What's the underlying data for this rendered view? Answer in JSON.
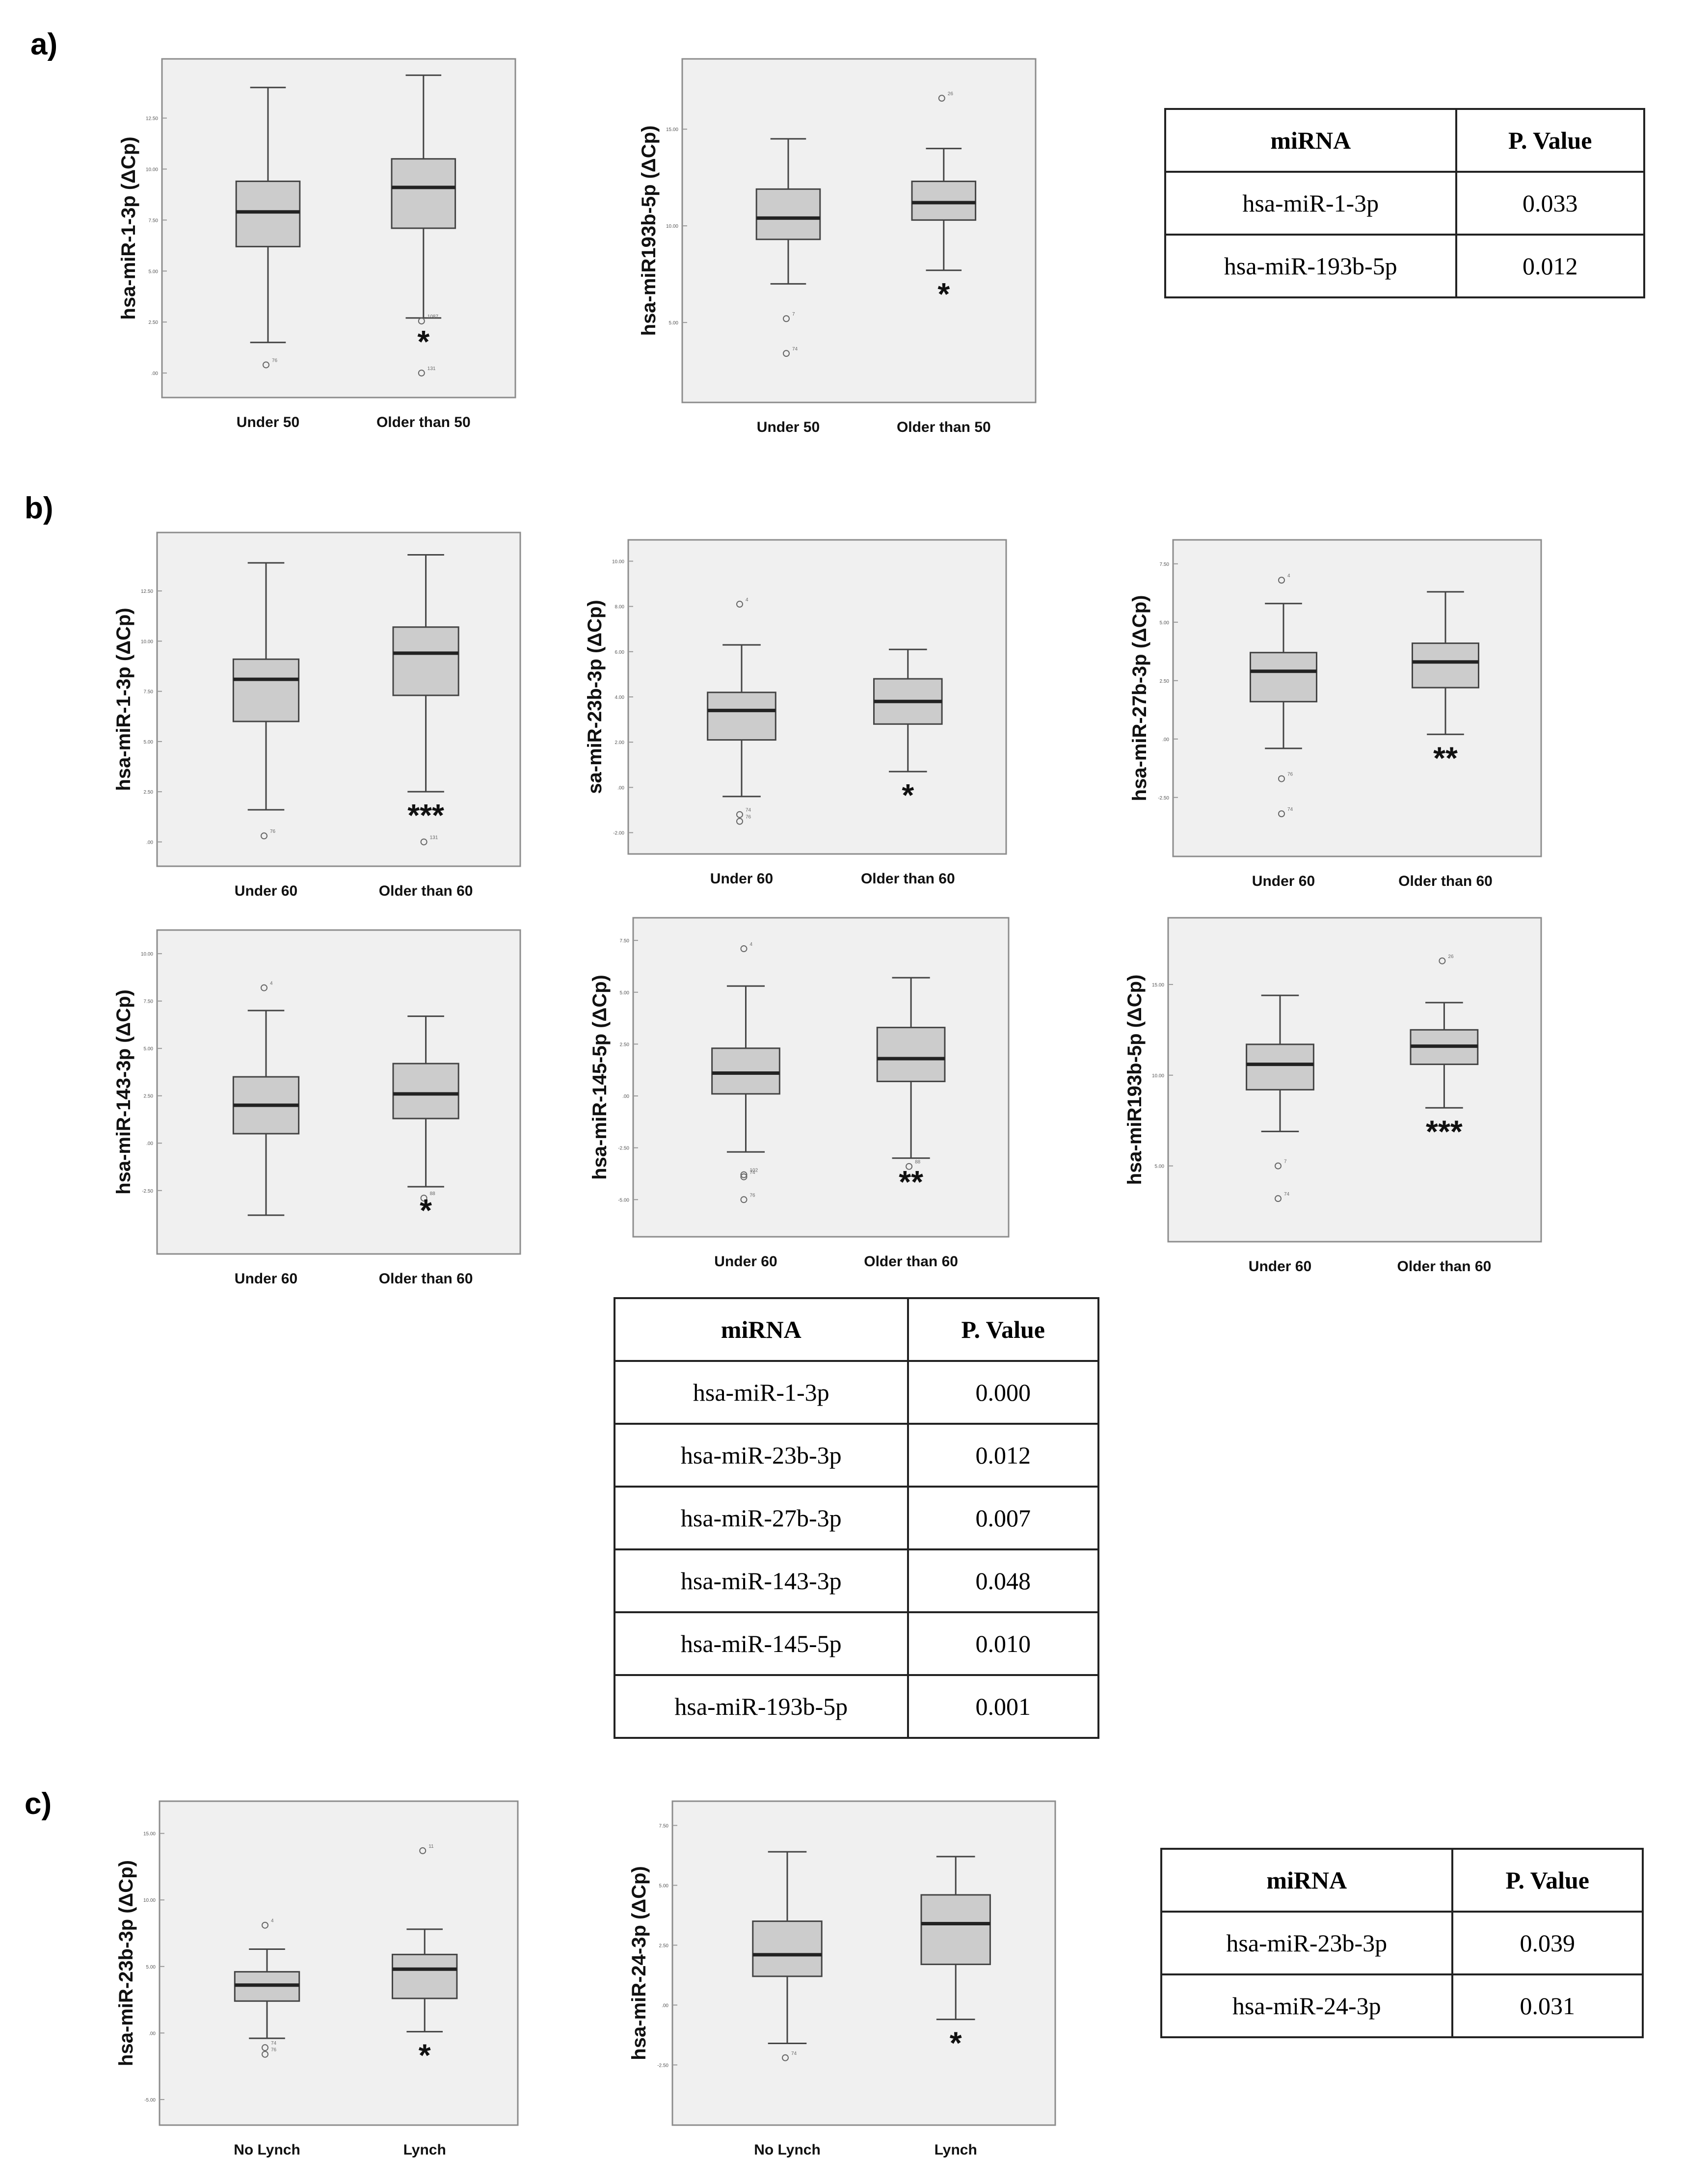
{
  "panels": {
    "a": "a)",
    "b": "b)",
    "c": "c)"
  },
  "chart_data": [
    {
      "id": "a1",
      "type": "boxplot",
      "ylabel": "hsa-miR-1-3p (ΔCp)",
      "categories": [
        "Under 50",
        "Older than 50"
      ],
      "yticks": [
        ".00",
        "2.50",
        "5.00",
        "7.50",
        "10.00",
        "12.50"
      ],
      "ylim": [
        -0.6,
        14.8
      ],
      "boxes": [
        {
          "low": 1.5,
          "q1": 6.2,
          "median": 7.9,
          "q3": 9.4,
          "high": 14.0,
          "outliers": [
            {
              "v": 0.4,
              "label": "76"
            }
          ]
        },
        {
          "low": 2.7,
          "q1": 7.1,
          "median": 9.1,
          "q3": 10.5,
          "high": 14.6,
          "outliers": [
            {
              "v": 2.55,
              "label": "1087"
            },
            {
              "v": 0.0,
              "label": "131"
            }
          ]
        }
      ],
      "significance": [
        "",
        "*"
      ]
    },
    {
      "id": "a2",
      "type": "boxplot",
      "ylabel": "hsa-miR193b-5p (ΔCp)",
      "categories": [
        "Under 50",
        "Older than 50"
      ],
      "yticks": [
        "5.00",
        "10.00",
        "15.00"
      ],
      "ylim": [
        1.5,
        18.0
      ],
      "boxes": [
        {
          "low": 7.0,
          "q1": 9.3,
          "median": 10.4,
          "q3": 11.9,
          "high": 14.5,
          "outliers": [
            {
              "v": 5.2,
              "label": "7"
            },
            {
              "v": 3.4,
              "label": "74"
            }
          ]
        },
        {
          "low": 7.7,
          "q1": 10.3,
          "median": 11.2,
          "q3": 12.3,
          "high": 14.0,
          "outliers": [
            {
              "v": 16.6,
              "label": "26"
            }
          ]
        }
      ],
      "significance": [
        "",
        "*"
      ]
    },
    {
      "id": "b1",
      "type": "boxplot",
      "ylabel": "hsa-miR-1-3p (ΔCp)",
      "categories": [
        "Under 60",
        "Older than 60"
      ],
      "yticks": [
        ".00",
        "2.50",
        "5.00",
        "7.50",
        "10.00",
        "12.50"
      ],
      "ylim": [
        -0.6,
        14.8
      ],
      "boxes": [
        {
          "low": 1.6,
          "q1": 6.0,
          "median": 8.1,
          "q3": 9.1,
          "high": 13.9,
          "outliers": [
            {
              "v": 0.3,
              "label": "76"
            }
          ]
        },
        {
          "low": 2.5,
          "q1": 7.3,
          "median": 9.4,
          "q3": 10.7,
          "high": 14.3,
          "outliers": [
            {
              "v": 0.0,
              "label": "131"
            }
          ]
        }
      ],
      "significance": [
        "",
        "***"
      ]
    },
    {
      "id": "b2",
      "type": "boxplot",
      "ylabel": "sa-miR-23b-3p (ΔCp)",
      "categories": [
        "Under 60",
        "Older than 60"
      ],
      "yticks": [
        "-2.00",
        ".00",
        "2.00",
        "4.00",
        "6.00",
        "8.00",
        "10.00"
      ],
      "ylim": [
        -2.4,
        10.4
      ],
      "boxes": [
        {
          "low": -0.4,
          "q1": 2.1,
          "median": 3.4,
          "q3": 4.2,
          "high": 6.3,
          "outliers": [
            {
              "v": 8.1,
              "label": "4"
            },
            {
              "v": -1.2,
              "label": "74"
            },
            {
              "v": -1.5,
              "label": "76"
            }
          ]
        },
        {
          "low": 0.7,
          "q1": 2.8,
          "median": 3.8,
          "q3": 4.8,
          "high": 6.1,
          "outliers": []
        }
      ],
      "significance": [
        "",
        "*"
      ]
    },
    {
      "id": "b3",
      "type": "boxplot",
      "ylabel": "hsa-miR-27b-3p (ΔCp)",
      "categories": [
        "Under 60",
        "Older than 60"
      ],
      "yticks": [
        "-2.50",
        ".00",
        "2.50",
        "5.00",
        "7.50"
      ],
      "ylim": [
        -4.5,
        8.0
      ],
      "boxes": [
        {
          "low": -0.4,
          "q1": 1.6,
          "median": 2.9,
          "q3": 3.7,
          "high": 5.8,
          "outliers": [
            {
              "v": 6.8,
              "label": "4"
            },
            {
              "v": -1.7,
              "label": "76"
            },
            {
              "v": -3.2,
              "label": "74"
            }
          ]
        },
        {
          "low": 0.2,
          "q1": 2.2,
          "median": 3.3,
          "q3": 4.1,
          "high": 6.3,
          "outliers": []
        }
      ],
      "significance": [
        "",
        "**"
      ]
    },
    {
      "id": "b4",
      "type": "boxplot",
      "ylabel": "hsa-miR-143-3p (ΔCp)",
      "categories": [
        "Under 60",
        "Older than 60"
      ],
      "yticks": [
        "-2.50",
        ".00",
        "2.50",
        "5.00",
        "7.50",
        "10.00"
      ],
      "ylim": [
        -5.2,
        10.6
      ],
      "boxes": [
        {
          "low": -3.8,
          "q1": 0.5,
          "median": 2.0,
          "q3": 3.5,
          "high": 7.0,
          "outliers": [
            {
              "v": 8.2,
              "label": "4"
            }
          ]
        },
        {
          "low": -2.3,
          "q1": 1.3,
          "median": 2.6,
          "q3": 4.2,
          "high": 6.7,
          "outliers": [
            {
              "v": -2.9,
              "label": "88"
            }
          ]
        }
      ],
      "significance": [
        "",
        "*"
      ]
    },
    {
      "id": "b5",
      "type": "boxplot",
      "ylabel": "hsa-miR-145-5p (ΔCp)",
      "categories": [
        "Under 60",
        "Older than 60"
      ],
      "yticks": [
        "-5.00",
        "-2.50",
        ".00",
        "2.50",
        "5.00",
        "7.50"
      ],
      "ylim": [
        -6.2,
        8.0
      ],
      "boxes": [
        {
          "low": -2.7,
          "q1": 0.1,
          "median": 1.1,
          "q3": 2.3,
          "high": 5.3,
          "outliers": [
            {
              "v": 7.1,
              "label": "4"
            },
            {
              "v": -3.9,
              "label": "74"
            },
            {
              "v": -3.8,
              "label": "102"
            },
            {
              "v": -5.0,
              "label": "76"
            }
          ]
        },
        {
          "low": -3.0,
          "q1": 0.7,
          "median": 1.8,
          "q3": 3.3,
          "high": 5.7,
          "outliers": [
            {
              "v": -3.4,
              "label": "88"
            }
          ]
        }
      ],
      "significance": [
        "",
        "**"
      ]
    },
    {
      "id": "b6",
      "type": "boxplot",
      "ylabel": "hsa-miR193b-5p (ΔCp)",
      "categories": [
        "Under 60",
        "Older than 60"
      ],
      "yticks": [
        "5.00",
        "10.00",
        "15.00"
      ],
      "ylim": [
        1.5,
        18.0
      ],
      "boxes": [
        {
          "low": 6.9,
          "q1": 9.2,
          "median": 10.6,
          "q3": 11.7,
          "high": 14.4,
          "outliers": [
            {
              "v": 5.0,
              "label": "7"
            },
            {
              "v": 3.2,
              "label": "74"
            }
          ]
        },
        {
          "low": 8.2,
          "q1": 10.6,
          "median": 11.6,
          "q3": 12.5,
          "high": 14.0,
          "outliers": [
            {
              "v": 16.3,
              "label": "26"
            }
          ]
        }
      ],
      "significance": [
        "",
        "***"
      ]
    },
    {
      "id": "c1",
      "type": "boxplot",
      "ylabel": "hsa-miR-23b-3p (ΔCp)",
      "categories": [
        "No Lynch",
        "Lynch"
      ],
      "yticks": [
        "-5.00",
        ".00",
        "5.00",
        "10.00",
        "15.00"
      ],
      "ylim": [
        -6.0,
        16.5
      ],
      "boxes": [
        {
          "low": -0.4,
          "q1": 2.4,
          "median": 3.6,
          "q3": 4.6,
          "high": 6.3,
          "outliers": [
            {
              "v": 8.1,
              "label": "4"
            },
            {
              "v": -1.1,
              "label": "74"
            },
            {
              "v": -1.6,
              "label": "76"
            }
          ]
        },
        {
          "low": 0.1,
          "q1": 2.6,
          "median": 4.8,
          "q3": 5.9,
          "high": 7.8,
          "outliers": [
            {
              "v": 13.7,
              "label": "11"
            }
          ]
        }
      ],
      "significance": [
        "",
        "*"
      ]
    },
    {
      "id": "c2",
      "type": "boxplot",
      "ylabel": "hsa-miR-24-3p (ΔCp)",
      "categories": [
        "No Lynch",
        "Lynch"
      ],
      "yticks": [
        "-2.50",
        ".00",
        "2.50",
        "5.00",
        "7.50"
      ],
      "ylim": [
        -4.5,
        8.0
      ],
      "boxes": [
        {
          "low": -1.6,
          "q1": 1.2,
          "median": 2.1,
          "q3": 3.5,
          "high": 6.4,
          "outliers": [
            {
              "v": -2.2,
              "label": "74"
            }
          ]
        },
        {
          "low": -0.6,
          "q1": 1.7,
          "median": 3.4,
          "q3": 4.6,
          "high": 6.2,
          "outliers": []
        }
      ],
      "significance": [
        "",
        "*"
      ]
    }
  ],
  "tables": {
    "a": {
      "headers": [
        "miRNA",
        "P. Value"
      ],
      "rows": [
        [
          "hsa-miR-1-3p",
          "0.033"
        ],
        [
          "hsa-miR-193b-5p",
          "0.012"
        ]
      ]
    },
    "b": {
      "headers": [
        "miRNA",
        "P. Value"
      ],
      "rows": [
        [
          "hsa-miR-1-3p",
          "0.000"
        ],
        [
          "hsa-miR-23b-3p",
          "0.012"
        ],
        [
          "hsa-miR-27b-3p",
          "0.007"
        ],
        [
          "hsa-miR-143-3p",
          "0.048"
        ],
        [
          "hsa-miR-145-5p",
          "0.010"
        ],
        [
          "hsa-miR-193b-5p",
          "0.001"
        ]
      ]
    },
    "c": {
      "headers": [
        "miRNA",
        "P. Value"
      ],
      "rows": [
        [
          "hsa-miR-23b-3p",
          "0.039"
        ],
        [
          "hsa-miR-24-3p",
          "0.031"
        ]
      ]
    }
  }
}
